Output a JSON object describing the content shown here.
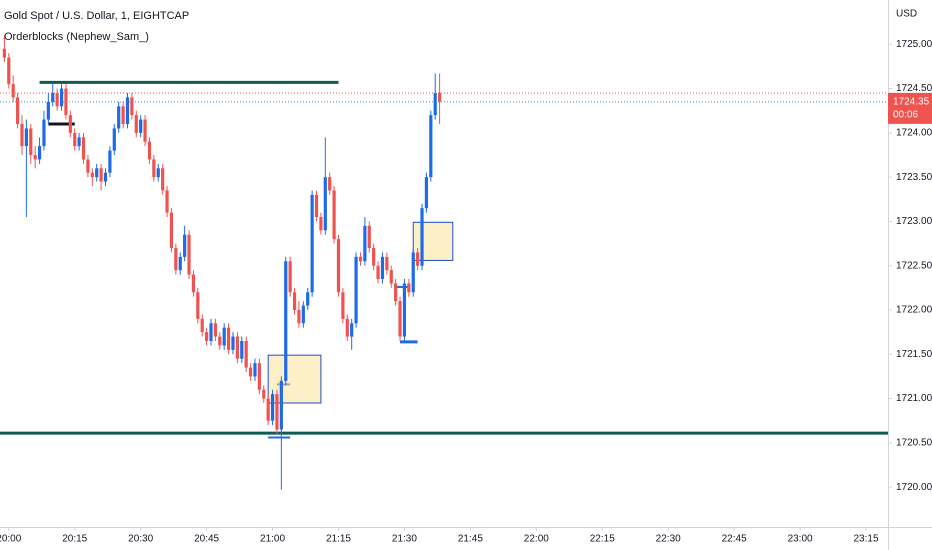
{
  "chart_data": {
    "type": "candlestick",
    "title": "Gold Spot / U.S. Dollar, 1, EIGHTCAP",
    "indicator": "Orderblocks (Nephew_Sam_)",
    "currency": "USD",
    "last_price": 1724.35,
    "countdown": "00:06",
    "up_color": "#1e6be6",
    "down_color": "#ef5350",
    "xlim": [
      "19:58",
      "23:20"
    ],
    "ylim": [
      1719.55,
      1725.5
    ],
    "xticks": [
      "20:00",
      "20:15",
      "20:30",
      "20:45",
      "21:00",
      "21:15",
      "21:30",
      "21:45",
      "22:00",
      "22:15",
      "22:30",
      "22:45",
      "23:00",
      "23:15"
    ],
    "yticks": [
      {
        "value": 1720,
        "label": "1720.00"
      },
      {
        "value": 1720.5,
        "label": "1720.50"
      },
      {
        "value": 1721,
        "label": "1721.00"
      },
      {
        "value": 1721.5,
        "label": "1721.50"
      },
      {
        "value": 1722,
        "label": "1722.00"
      },
      {
        "value": 1722.5,
        "label": "1722.50"
      },
      {
        "value": 1723,
        "label": "1723.00"
      },
      {
        "value": 1723.5,
        "label": "1723.50"
      },
      {
        "value": 1724,
        "label": "1724.00"
      },
      {
        "value": 1724.5,
        "label": "1724.50"
      },
      {
        "value": 1725,
        "label": "1725.00"
      }
    ],
    "x": [
      "19:59",
      "20:00",
      "20:01",
      "20:02",
      "20:03",
      "20:04",
      "20:05",
      "20:06",
      "20:07",
      "20:08",
      "20:09",
      "20:10",
      "20:11",
      "20:12",
      "20:13",
      "20:14",
      "20:15",
      "20:16",
      "20:17",
      "20:18",
      "20:19",
      "20:20",
      "20:21",
      "20:22",
      "20:23",
      "20:24",
      "20:25",
      "20:26",
      "20:27",
      "20:28",
      "20:29",
      "20:30",
      "20:31",
      "20:32",
      "20:33",
      "20:34",
      "20:35",
      "20:36",
      "20:37",
      "20:38",
      "20:39",
      "20:40",
      "20:41",
      "20:42",
      "20:43",
      "20:44",
      "20:45",
      "20:46",
      "20:47",
      "20:48",
      "20:49",
      "20:50",
      "20:51",
      "20:52",
      "20:53",
      "20:54",
      "20:55",
      "20:56",
      "20:57",
      "20:58",
      "20:59",
      "21:00",
      "21:01",
      "21:02",
      "21:03",
      "21:04",
      "21:05",
      "21:06",
      "21:07",
      "21:08",
      "21:09",
      "21:10",
      "21:11",
      "21:12",
      "21:13",
      "21:14",
      "21:15",
      "21:16",
      "21:17",
      "21:18",
      "21:19",
      "21:20",
      "21:21",
      "21:22",
      "21:23",
      "21:24",
      "21:25",
      "21:26",
      "21:27",
      "21:28",
      "21:29",
      "21:30",
      "21:31",
      "21:32",
      "21:33",
      "21:34",
      "21:35",
      "21:36",
      "21:37",
      "21:38"
    ],
    "ohlc": [
      [
        1724.95,
        1725.1,
        1724.8,
        1724.85
      ],
      [
        1724.85,
        1724.9,
        1724.5,
        1724.55
      ],
      [
        1724.55,
        1724.65,
        1724.35,
        1724.4
      ],
      [
        1724.4,
        1724.45,
        1724.05,
        1724.1
      ],
      [
        1724.1,
        1724.2,
        1723.75,
        1723.85
      ],
      [
        1723.85,
        1724.15,
        1723.05,
        1724.05
      ],
      [
        1724.05,
        1724.1,
        1723.65,
        1723.75
      ],
      [
        1723.75,
        1723.85,
        1723.6,
        1723.7
      ],
      [
        1723.7,
        1723.95,
        1723.65,
        1723.85
      ],
      [
        1723.85,
        1724.25,
        1723.8,
        1724.15
      ],
      [
        1724.15,
        1724.45,
        1724.1,
        1724.35
      ],
      [
        1724.35,
        1724.55,
        1724.3,
        1724.45
      ],
      [
        1724.45,
        1724.5,
        1724.25,
        1724.3
      ],
      [
        1724.3,
        1724.55,
        1724.25,
        1724.5
      ],
      [
        1724.5,
        1724.55,
        1724.15,
        1724.2
      ],
      [
        1724.2,
        1724.25,
        1723.95,
        1724.0
      ],
      [
        1724.0,
        1724.05,
        1723.8,
        1723.85
      ],
      [
        1723.85,
        1724.0,
        1723.8,
        1723.95
      ],
      [
        1723.95,
        1724.0,
        1723.65,
        1723.7
      ],
      [
        1723.7,
        1723.75,
        1723.5,
        1723.55
      ],
      [
        1723.55,
        1723.6,
        1723.4,
        1723.5
      ],
      [
        1723.5,
        1723.65,
        1723.45,
        1723.6
      ],
      [
        1723.6,
        1723.65,
        1723.35,
        1723.45
      ],
      [
        1723.45,
        1723.6,
        1723.4,
        1723.55
      ],
      [
        1723.55,
        1723.85,
        1723.5,
        1723.8
      ],
      [
        1723.8,
        1724.1,
        1723.75,
        1724.05
      ],
      [
        1724.05,
        1724.35,
        1724.0,
        1724.3
      ],
      [
        1724.3,
        1724.35,
        1724.05,
        1724.1
      ],
      [
        1724.1,
        1724.45,
        1724.05,
        1724.4
      ],
      [
        1724.4,
        1724.45,
        1724.15,
        1724.2
      ],
      [
        1724.2,
        1724.25,
        1723.95,
        1724.0
      ],
      [
        1724.0,
        1724.2,
        1723.95,
        1724.15
      ],
      [
        1724.15,
        1724.2,
        1723.85,
        1723.9
      ],
      [
        1723.9,
        1723.95,
        1723.65,
        1723.7
      ],
      [
        1723.7,
        1723.75,
        1723.45,
        1723.5
      ],
      [
        1723.5,
        1723.65,
        1723.45,
        1723.6
      ],
      [
        1723.6,
        1723.65,
        1723.3,
        1723.35
      ],
      [
        1723.35,
        1723.4,
        1723.05,
        1723.1
      ],
      [
        1723.1,
        1723.15,
        1722.65,
        1722.7
      ],
      [
        1722.7,
        1722.75,
        1722.4,
        1722.45
      ],
      [
        1722.45,
        1722.65,
        1722.4,
        1722.6
      ],
      [
        1722.6,
        1722.95,
        1722.55,
        1722.85
      ],
      [
        1722.85,
        1722.9,
        1722.35,
        1722.4
      ],
      [
        1722.4,
        1722.45,
        1722.15,
        1722.2
      ],
      [
        1722.2,
        1722.25,
        1721.85,
        1721.9
      ],
      [
        1721.9,
        1721.95,
        1721.7,
        1721.75
      ],
      [
        1721.75,
        1721.8,
        1721.6,
        1721.65
      ],
      [
        1721.65,
        1721.9,
        1721.6,
        1721.85
      ],
      [
        1721.85,
        1721.9,
        1721.65,
        1721.7
      ],
      [
        1721.7,
        1721.75,
        1721.55,
        1721.6
      ],
      [
        1721.6,
        1721.85,
        1721.55,
        1721.8
      ],
      [
        1721.8,
        1721.85,
        1721.5,
        1721.55
      ],
      [
        1721.55,
        1721.75,
        1721.5,
        1721.7
      ],
      [
        1721.7,
        1721.75,
        1721.4,
        1721.45
      ],
      [
        1721.45,
        1721.7,
        1721.4,
        1721.65
      ],
      [
        1721.65,
        1721.7,
        1721.3,
        1721.35
      ],
      [
        1721.35,
        1721.4,
        1721.2,
        1721.25
      ],
      [
        1721.25,
        1721.45,
        1721.2,
        1721.4
      ],
      [
        1721.4,
        1721.45,
        1721.05,
        1721.1
      ],
      [
        1721.1,
        1721.15,
        1720.95,
        1721.0
      ],
      [
        1721.0,
        1721.05,
        1720.7,
        1720.75
      ],
      [
        1720.75,
        1721.1,
        1720.7,
        1721.05
      ],
      [
        1721.05,
        1721.1,
        1720.6,
        1720.65
      ],
      [
        1720.65,
        1721.25,
        1719.97,
        1721.2
      ],
      [
        1721.2,
        1722.6,
        1721.15,
        1722.55
      ],
      [
        1722.55,
        1722.6,
        1722.15,
        1722.2
      ],
      [
        1722.2,
        1722.25,
        1721.95,
        1722.0
      ],
      [
        1722.0,
        1722.1,
        1721.8,
        1721.85
      ],
      [
        1721.85,
        1722.1,
        1721.8,
        1722.05
      ],
      [
        1722.05,
        1722.25,
        1722.0,
        1722.2
      ],
      [
        1722.2,
        1723.35,
        1722.15,
        1723.3
      ],
      [
        1723.3,
        1723.35,
        1723.0,
        1723.05
      ],
      [
        1723.05,
        1723.1,
        1722.85,
        1722.9
      ],
      [
        1722.9,
        1723.95,
        1722.85,
        1723.5
      ],
      [
        1723.5,
        1723.55,
        1723.3,
        1723.35
      ],
      [
        1723.35,
        1723.4,
        1722.75,
        1722.8
      ],
      [
        1722.8,
        1722.85,
        1722.15,
        1722.2
      ],
      [
        1722.2,
        1722.25,
        1721.85,
        1721.9
      ],
      [
        1721.9,
        1721.95,
        1721.65,
        1721.7
      ],
      [
        1721.7,
        1721.9,
        1721.55,
        1721.85
      ],
      [
        1721.85,
        1722.65,
        1721.8,
        1722.6
      ],
      [
        1722.6,
        1722.65,
        1722.5,
        1722.55
      ],
      [
        1722.55,
        1723.05,
        1722.5,
        1722.95
      ],
      [
        1722.95,
        1723.0,
        1722.65,
        1722.7
      ],
      [
        1722.7,
        1722.75,
        1722.45,
        1722.5
      ],
      [
        1722.5,
        1722.55,
        1722.3,
        1722.35
      ],
      [
        1722.35,
        1722.65,
        1722.3,
        1722.6
      ],
      [
        1722.6,
        1722.65,
        1722.4,
        1722.45
      ],
      [
        1722.45,
        1722.5,
        1722.25,
        1722.3
      ],
      [
        1722.3,
        1722.35,
        1722.05,
        1722.1
      ],
      [
        1722.1,
        1722.15,
        1721.65,
        1721.7
      ],
      [
        1721.7,
        1722.35,
        1721.65,
        1722.3
      ],
      [
        1722.3,
        1722.35,
        1722.15,
        1722.2
      ],
      [
        1722.2,
        1722.7,
        1722.15,
        1722.65
      ],
      [
        1722.65,
        1722.7,
        1722.45,
        1722.5
      ],
      [
        1722.5,
        1723.2,
        1722.45,
        1723.15
      ],
      [
        1723.15,
        1723.55,
        1723.1,
        1723.5
      ],
      [
        1723.5,
        1724.25,
        1723.45,
        1724.2
      ],
      [
        1724.2,
        1724.67,
        1724.15,
        1724.45
      ],
      [
        1724.45,
        1724.67,
        1724.1,
        1724.35
      ]
    ],
    "boxes": [
      {
        "top": 1721.49,
        "bottom": 1720.95,
        "from": "20:59",
        "to": "21:11",
        "fill": "#fdefc8",
        "stroke": "#1e4fbf"
      },
      {
        "top": 1722.99,
        "bottom": 1722.56,
        "from": "21:32",
        "to": "21:41",
        "fill": "#fdefc8",
        "stroke": "#1e4fbf"
      }
    ],
    "lines": [
      {
        "price": 1724.45,
        "from": "19:58",
        "to": "23:20",
        "color": "#ef5350",
        "width": 1,
        "dotted": true
      },
      {
        "price": 1724.35,
        "from": "19:58",
        "to": "23:20",
        "color": "#2196f3",
        "width": 1,
        "dotted": true
      },
      {
        "price": 1724.57,
        "from": "20:07",
        "to": "21:15",
        "color": "#0d5c4f",
        "width": 3,
        "dotted": false
      },
      {
        "price": 1720.61,
        "from": "19:58",
        "to": "23:20",
        "color": "#0d5c4f",
        "width": 3,
        "dotted": false
      },
      {
        "price": 1724.1,
        "from": "20:09",
        "to": "20:15",
        "color": "#131722",
        "width": 3,
        "dotted": false
      },
      {
        "price": 1720.56,
        "from": "20:59",
        "to": "21:04",
        "color": "#1e6be6",
        "width": 2,
        "dotted": false
      },
      {
        "price": 1721.16,
        "from": "21:01",
        "to": "21:04",
        "color": "#9aa5b1",
        "width": 2,
        "dotted": false
      },
      {
        "price": 1721.64,
        "from": "21:29",
        "to": "21:33",
        "color": "#1e6be6",
        "width": 3,
        "dotted": false
      },
      {
        "price": 1722.26,
        "from": "21:28",
        "to": "21:31",
        "color": "#1e6be6",
        "width": 2,
        "dotted": false
      }
    ]
  }
}
